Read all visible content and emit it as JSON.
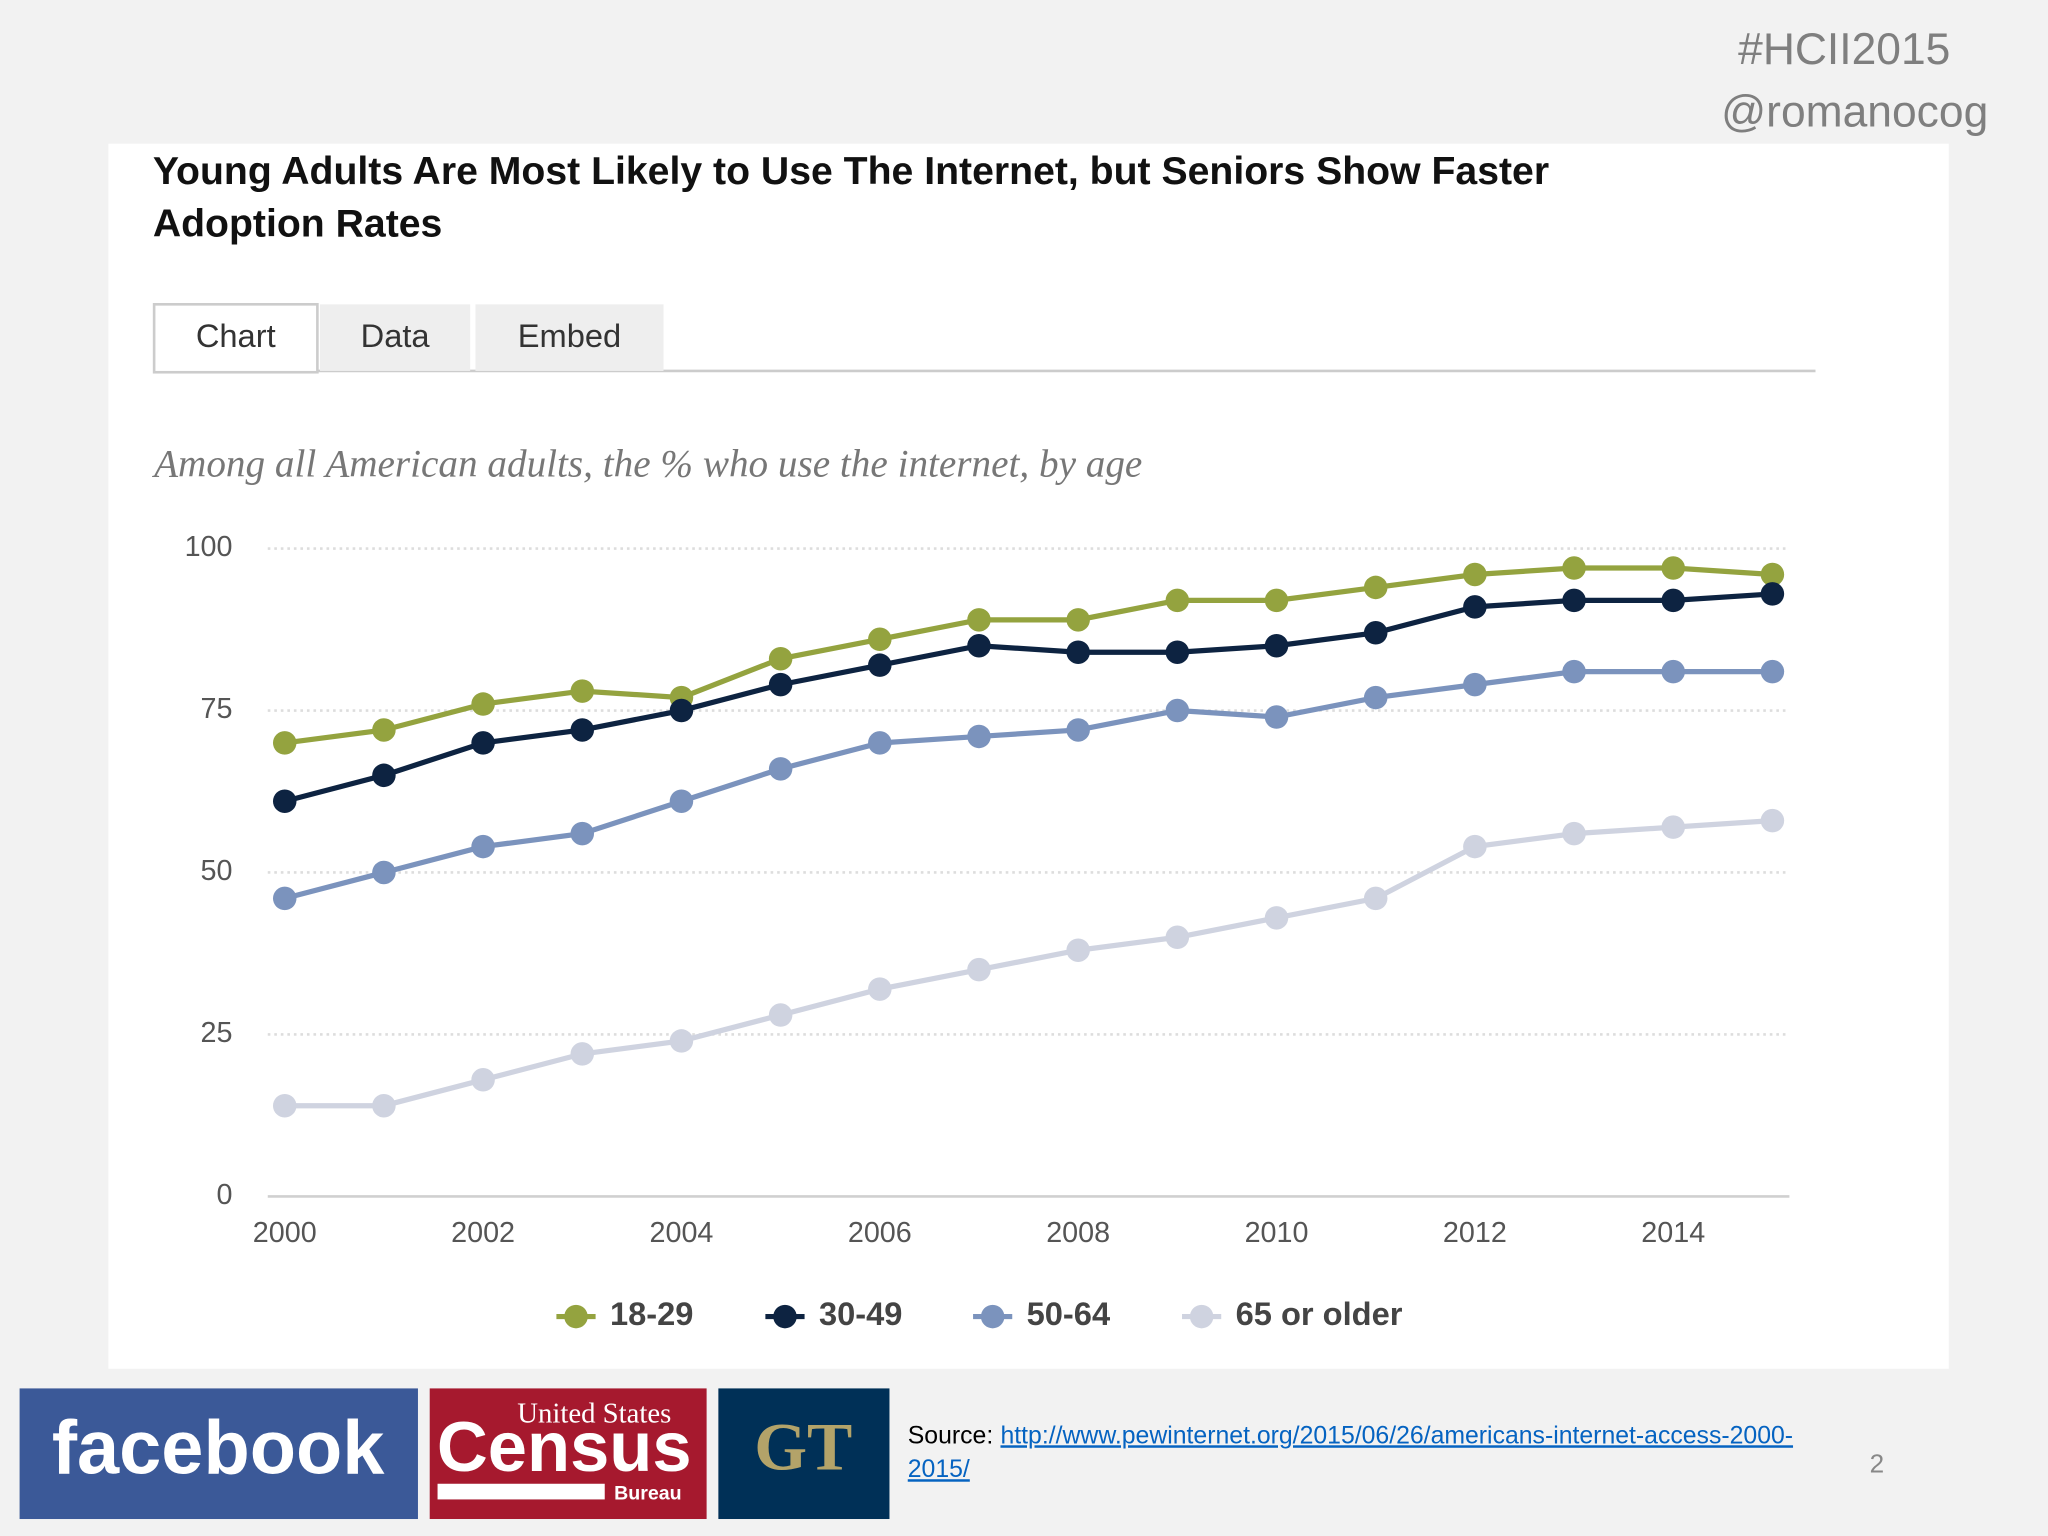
{
  "slide": {
    "hashtag": "#HCII2015",
    "handle": "@romanocog",
    "page_number": 2
  },
  "tabs": [
    "Chart",
    "Data",
    "Embed"
  ],
  "source": {
    "label": "Source:",
    "link_lines": [
      "http://www.pewinternet.org/2015/06/26/americans-internet-access-2000-",
      "2015/"
    ]
  },
  "logos": {
    "facebook": "facebook",
    "census": [
      "United States",
      "Census",
      "Bureau"
    ],
    "gt": "GT"
  },
  "chart_data": {
    "type": "line",
    "title": "Young Adults Are Most Likely to Use The Internet, but Seniors Show Faster Adoption Rates",
    "subtitle": "Among all American adults, the % who use the internet, by age",
    "x": [
      2000,
      2001,
      2002,
      2003,
      2004,
      2005,
      2006,
      2007,
      2008,
      2009,
      2010,
      2011,
      2012,
      2013,
      2014,
      2015
    ],
    "xlim": [
      2000,
      2015
    ],
    "xticks": [
      2000,
      2002,
      2004,
      2006,
      2008,
      2010,
      2012,
      2014
    ],
    "ylim": [
      0,
      100
    ],
    "yticks": [
      0,
      25,
      50,
      75,
      100
    ],
    "grid": true,
    "legend": "bottom",
    "series": [
      {
        "name": "18-29",
        "color": "#94a33f",
        "values": [
          70,
          72,
          76,
          78,
          77,
          83,
          86,
          89,
          89,
          92,
          92,
          94,
          96,
          97,
          97,
          96
        ]
      },
      {
        "name": "30-49",
        "color": "#0d2341",
        "values": [
          61,
          65,
          70,
          72,
          75,
          79,
          82,
          85,
          84,
          84,
          85,
          87,
          91,
          92,
          92,
          93
        ]
      },
      {
        "name": "50-64",
        "color": "#7b93bd",
        "values": [
          46,
          50,
          54,
          56,
          61,
          66,
          70,
          71,
          72,
          75,
          74,
          77,
          79,
          81,
          81,
          81
        ]
      },
      {
        "name": "65 or older",
        "color": "#cfd3e0",
        "values": [
          14,
          14,
          18,
          22,
          24,
          28,
          32,
          35,
          38,
          40,
          43,
          46,
          54,
          56,
          57,
          58
        ]
      }
    ]
  }
}
